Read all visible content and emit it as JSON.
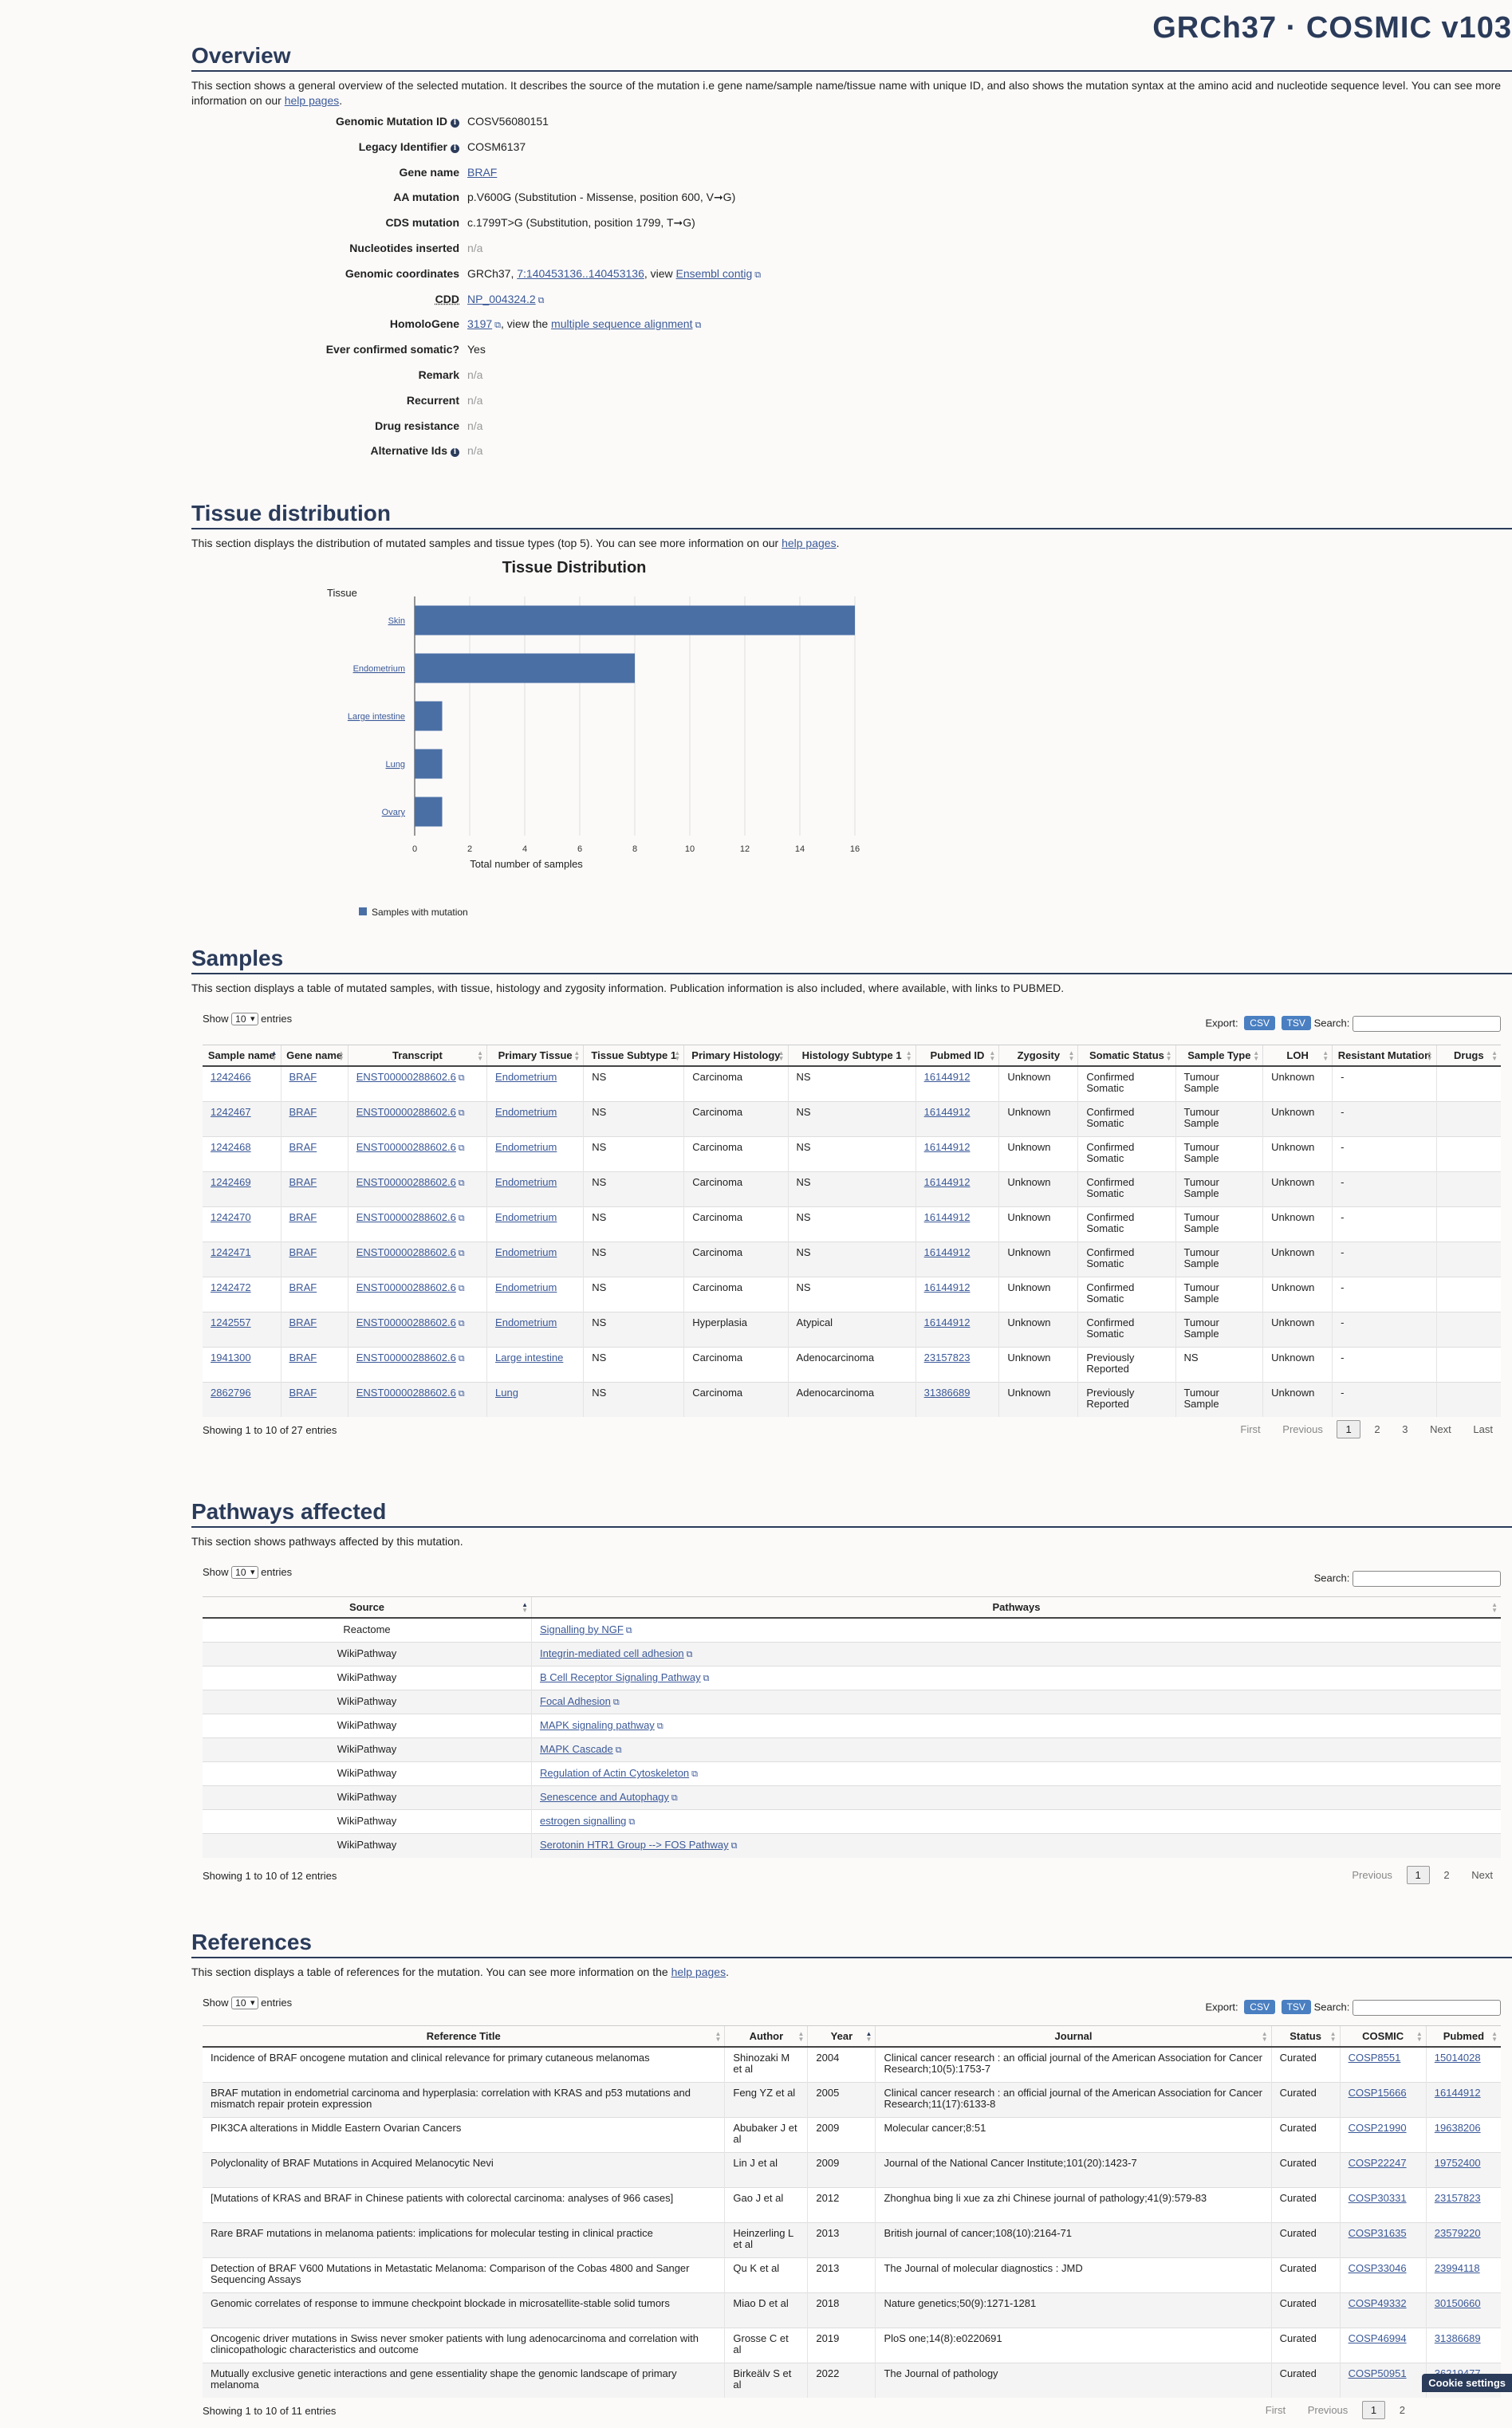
{
  "header": {
    "title": "GRCh37 · COSMIC v103"
  },
  "overview": {
    "title": "Overview",
    "desc": "This section shows a general overview of the selected mutation. It describes the source of the mutation i.e gene name/sample name/tissue name with unique ID, and also shows the mutation syntax at the amino acid and nucleotide sequence level. You can see more information on our",
    "desc_link": "help pages",
    "rows": [
      {
        "label": "Genomic Mutation ID",
        "value": "COSV56080151"
      },
      {
        "label": "Legacy Identifier",
        "value": "COSM6137"
      },
      {
        "label": "Gene name",
        "value": "BRAF"
      },
      {
        "label": "AA mutation",
        "value": "p.V600G (Substitution - Missense, position 600, V➞G)"
      },
      {
        "label": "CDS mutation",
        "value": "c.1799T>G (Substitution, position 1799, T➞G)"
      },
      {
        "label": "Nucleotides inserted",
        "value": "n/a"
      },
      {
        "label": "Genomic coordinates",
        "value_pre": "GRCh37, ",
        "value_link": "7:140453136..140453136",
        "value_mid": ", view ",
        "value_link2": "Ensembl contig"
      },
      {
        "label": "CDD",
        "value": "NP_004324.2"
      },
      {
        "label": "HomoloGene",
        "value_link": "3197",
        "value_mid": ", view the ",
        "value_link2": "multiple sequence alignment"
      },
      {
        "label": "Ever confirmed somatic?",
        "value": "Yes"
      },
      {
        "label": "Remark",
        "value": "n/a"
      },
      {
        "label": "Recurrent",
        "value": "n/a"
      },
      {
        "label": "Drug resistance",
        "value": "n/a"
      },
      {
        "label": "Alternative Ids",
        "value": "n/a"
      }
    ]
  },
  "tissue": {
    "title": "Tissue distribution",
    "desc": "This section displays the distribution of mutated samples and tissue types (top 5). You can see more information on our",
    "desc_link": "help pages"
  },
  "chart_data": {
    "type": "bar",
    "orientation": "horizontal",
    "title": "Tissue Distribution",
    "ylabel": "Tissue",
    "xlabel": "Total number of samples",
    "categories": [
      "Skin",
      "Endometrium",
      "Large intestine",
      "Lung",
      "Ovary"
    ],
    "values": [
      16,
      8,
      1,
      1,
      1
    ],
    "xlim": [
      0,
      16
    ],
    "xticks": [
      0,
      2,
      4,
      6,
      8,
      10,
      12,
      14,
      16
    ],
    "legend": [
      "Samples with mutation"
    ],
    "color": "#4a6fa5"
  },
  "samples": {
    "title": "Samples",
    "desc": "This section displays a table of mutated samples, with tissue, histology and zygosity information. Publication information is also included, where available, with links to PUBMED.",
    "show": "Show",
    "entries": "entries",
    "length": "10",
    "export": "Export:",
    "csv": "CSV",
    "tsv": "TSV",
    "search": "Search:",
    "columns": [
      "Sample name",
      "Gene name",
      "Transcript",
      "Primary Tissue",
      "Tissue Subtype 1",
      "Primary Histology",
      "Histology Subtype 1",
      "Pubmed ID",
      "Zygosity",
      "Somatic Status",
      "Sample Type",
      "LOH",
      "Resistant Mutation",
      "Drugs"
    ],
    "rows": [
      [
        "1242466",
        "BRAF",
        "ENST00000288602.6",
        "Endometrium",
        "NS",
        "Carcinoma",
        "NS",
        "16144912",
        "Unknown",
        "Confirmed Somatic",
        "Tumour Sample",
        "Unknown",
        "-",
        ""
      ],
      [
        "1242467",
        "BRAF",
        "ENST00000288602.6",
        "Endometrium",
        "NS",
        "Carcinoma",
        "NS",
        "16144912",
        "Unknown",
        "Confirmed Somatic",
        "Tumour Sample",
        "Unknown",
        "-",
        ""
      ],
      [
        "1242468",
        "BRAF",
        "ENST00000288602.6",
        "Endometrium",
        "NS",
        "Carcinoma",
        "NS",
        "16144912",
        "Unknown",
        "Confirmed Somatic",
        "Tumour Sample",
        "Unknown",
        "-",
        ""
      ],
      [
        "1242469",
        "BRAF",
        "ENST00000288602.6",
        "Endometrium",
        "NS",
        "Carcinoma",
        "NS",
        "16144912",
        "Unknown",
        "Confirmed Somatic",
        "Tumour Sample",
        "Unknown",
        "-",
        ""
      ],
      [
        "1242470",
        "BRAF",
        "ENST00000288602.6",
        "Endometrium",
        "NS",
        "Carcinoma",
        "NS",
        "16144912",
        "Unknown",
        "Confirmed Somatic",
        "Tumour Sample",
        "Unknown",
        "-",
        ""
      ],
      [
        "1242471",
        "BRAF",
        "ENST00000288602.6",
        "Endometrium",
        "NS",
        "Carcinoma",
        "NS",
        "16144912",
        "Unknown",
        "Confirmed Somatic",
        "Tumour Sample",
        "Unknown",
        "-",
        ""
      ],
      [
        "1242472",
        "BRAF",
        "ENST00000288602.6",
        "Endometrium",
        "NS",
        "Carcinoma",
        "NS",
        "16144912",
        "Unknown",
        "Confirmed Somatic",
        "Tumour Sample",
        "Unknown",
        "-",
        ""
      ],
      [
        "1242557",
        "BRAF",
        "ENST00000288602.6",
        "Endometrium",
        "NS",
        "Hyperplasia",
        "Atypical",
        "16144912",
        "Unknown",
        "Confirmed Somatic",
        "Tumour Sample",
        "Unknown",
        "-",
        ""
      ],
      [
        "1941300",
        "BRAF",
        "ENST00000288602.6",
        "Large intestine",
        "NS",
        "Carcinoma",
        "Adenocarcinoma",
        "23157823",
        "Unknown",
        "Previously Reported",
        "NS",
        "Unknown",
        "-",
        ""
      ],
      [
        "2862796",
        "BRAF",
        "ENST00000288602.6",
        "Lung",
        "NS",
        "Carcinoma",
        "Adenocarcinoma",
        "31386689",
        "Unknown",
        "Previously Reported",
        "Tumour Sample",
        "Unknown",
        "-",
        ""
      ]
    ],
    "info": "Showing 1 to 10 of 27 entries",
    "pager": {
      "first": "First",
      "prev": "Previous",
      "pages": [
        "1",
        "2",
        "3"
      ],
      "next": "Next",
      "last": "Last"
    }
  },
  "pathways": {
    "title": "Pathways affected",
    "desc": "This section shows pathways affected by this mutation.",
    "show": "Show",
    "entries": "entries",
    "length": "10",
    "search": "Search:",
    "columns": [
      "Source",
      "Pathways"
    ],
    "rows": [
      [
        "Reactome",
        "Signalling by NGF"
      ],
      [
        "WikiPathway",
        "Integrin-mediated cell adhesion"
      ],
      [
        "WikiPathway",
        "B Cell Receptor Signaling Pathway"
      ],
      [
        "WikiPathway",
        "Focal Adhesion"
      ],
      [
        "WikiPathway",
        "MAPK signaling pathway"
      ],
      [
        "WikiPathway",
        "MAPK Cascade"
      ],
      [
        "WikiPathway",
        "Regulation of Actin Cytoskeleton"
      ],
      [
        "WikiPathway",
        "Senescence and Autophagy"
      ],
      [
        "WikiPathway",
        "estrogen signalling"
      ],
      [
        "WikiPathway",
        "Serotonin HTR1 Group --> FOS Pathway"
      ]
    ],
    "info": "Showing 1 to 10 of 12 entries",
    "pager": {
      "prev": "Previous",
      "pages": [
        "1",
        "2"
      ],
      "next": "Next"
    }
  },
  "references": {
    "title": "References",
    "desc": "This section displays a table of references for the mutation. You can see more information on the",
    "desc_link": "help pages",
    "show": "Show",
    "entries": "entries",
    "length": "10",
    "export": "Export:",
    "csv": "CSV",
    "tsv": "TSV",
    "search": "Search:",
    "columns": [
      "Reference Title",
      "Author",
      "Year",
      "Journal",
      "Status",
      "COSMIC",
      "Pubmed"
    ],
    "rows": [
      [
        "Incidence of BRAF oncogene mutation and clinical relevance for primary cutaneous melanomas",
        "Shinozaki M et al",
        "2004",
        "Clinical cancer research : an official journal of the American Association for Cancer Research;10(5):1753-7",
        "Curated",
        "COSP8551",
        "15014028"
      ],
      [
        "BRAF mutation in endometrial carcinoma and hyperplasia: correlation with KRAS and p53 mutations and mismatch repair protein expression",
        "Feng YZ et al",
        "2005",
        "Clinical cancer research : an official journal of the American Association for Cancer Research;11(17):6133-8",
        "Curated",
        "COSP15666",
        "16144912"
      ],
      [
        "PIK3CA alterations in Middle Eastern Ovarian Cancers",
        "Abubaker J et al",
        "2009",
        "Molecular cancer;8:51",
        "Curated",
        "COSP21990",
        "19638206"
      ],
      [
        "Polyclonality of BRAF Mutations in Acquired Melanocytic Nevi",
        "Lin J et al",
        "2009",
        "Journal of the National Cancer Institute;101(20):1423-7",
        "Curated",
        "COSP22247",
        "19752400"
      ],
      [
        "[Mutations of KRAS and BRAF in Chinese patients with colorectal carcinoma: analyses of 966 cases]",
        "Gao J et al",
        "2012",
        "Zhonghua bing li xue za zhi Chinese journal of pathology;41(9):579-83",
        "Curated",
        "COSP30331",
        "23157823"
      ],
      [
        "Rare BRAF mutations in melanoma patients: implications for molecular testing in clinical practice",
        "Heinzerling L et al",
        "2013",
        "British journal of cancer;108(10):2164-71",
        "Curated",
        "COSP31635",
        "23579220"
      ],
      [
        "Detection of BRAF V600 Mutations in Metastatic Melanoma: Comparison of the Cobas 4800 and Sanger Sequencing Assays",
        "Qu K et al",
        "2013",
        "The Journal of molecular diagnostics : JMD",
        "Curated",
        "COSP33046",
        "23994118"
      ],
      [
        "Genomic correlates of response to immune checkpoint blockade in microsatellite-stable solid tumors",
        "Miao D et al",
        "2018",
        "Nature genetics;50(9):1271-1281",
        "Curated",
        "COSP49332",
        "30150660"
      ],
      [
        "Oncogenic driver mutations in Swiss never smoker patients with lung adenocarcinoma and correlation with clinicopathologic characteristics and outcome",
        "Grosse C et al",
        "2019",
        "PloS one;14(8):e0220691",
        "Curated",
        "COSP46994",
        "31386689"
      ],
      [
        "Mutually exclusive genetic interactions and gene essentiality shape the genomic landscape of primary melanoma",
        "Birkeälv S et al",
        "2022",
        "The Journal of pathology",
        "Curated",
        "COSP50951",
        "36219477"
      ]
    ],
    "info": "Showing 1 to 10 of 11 entries",
    "pager": {
      "first": "First",
      "prev": "Previous",
      "pages": [
        "1",
        "2"
      ]
    }
  },
  "cookie": "Cookie settings"
}
